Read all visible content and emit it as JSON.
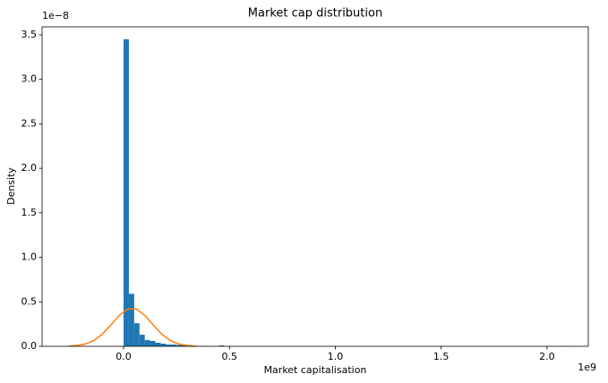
{
  "chart_data": {
    "type": "histogram",
    "title": "Market cap distribution",
    "x_label": "Market capitalisation",
    "y_label": "Density",
    "x_offset_label": "1e9",
    "y_offset_label": "1e−8",
    "bins": [
      0,
      25000000.0,
      50000000.0,
      75000000.0,
      100000000.0,
      125000000.0,
      150000000.0,
      175000000.0,
      200000000.0,
      225000000.0,
      250000000.0,
      275000000.0,
      300000000.0,
      325000000.0,
      350000000.0,
      375000000.0,
      400000000.0,
      425000000.0,
      450000000.0,
      475000000.0,
      500000000.0,
      525000000.0,
      550000000.0,
      575000000.0,
      600000000.0,
      625000000.0,
      650000000.0,
      675000000.0,
      700000000.0,
      725000000.0,
      750000000.0,
      775000000.0,
      800000000.0,
      825000000.0,
      850000000.0,
      875000000.0,
      900000000.0,
      925000000.0,
      950000000.0,
      975000000.0,
      1000000000.0,
      1025000000.0,
      1050000000.0,
      1075000000.0,
      1100000000.0,
      1125000000.0,
      1150000000.0,
      1175000000.0,
      1200000000.0,
      1225000000.0,
      1250000000.0,
      1275000000.0,
      1300000000.0,
      1325000000.0,
      1350000000.0,
      1375000000.0,
      1400000000.0,
      1425000000.0,
      1450000000.0,
      1475000000.0,
      1500000000.0,
      1525000000.0,
      1550000000.0,
      1575000000.0,
      1600000000.0,
      1625000000.0,
      1650000000.0,
      1675000000.0,
      1700000000.0,
      1725000000.0,
      1750000000.0,
      1775000000.0,
      1800000000.0,
      1825000000.0,
      1850000000.0,
      1875000000.0,
      1900000000.0,
      1925000000.0,
      1950000000.0,
      1975000000.0,
      2000000000.0,
      2025000000.0,
      2050000000.0,
      2075000000.0,
      2100000000.0
    ],
    "values": [
      3.45e-08,
      5.9e-09,
      2.6e-09,
      1.3e-09,
      7e-10,
      6e-10,
      4e-10,
      3e-10,
      2e-10,
      2e-10,
      1.5e-10,
      1e-10,
      1e-10,
      5e-11,
      5e-11,
      3e-11,
      0,
      0,
      1e-10,
      0,
      0,
      0,
      0,
      0,
      0,
      0,
      0,
      0,
      0,
      0,
      0,
      0,
      0,
      0,
      0,
      0,
      0,
      0,
      0,
      0,
      0,
      0,
      0,
      0,
      0,
      0,
      0,
      0,
      0,
      0,
      0,
      0,
      0,
      0,
      0,
      0,
      0,
      0,
      0,
      0,
      0,
      0,
      0,
      0,
      0,
      0,
      0,
      0,
      0,
      0,
      0,
      0,
      0,
      0,
      0,
      0,
      0,
      0,
      0,
      0,
      0,
      0,
      0,
      2e-11
    ],
    "color": "#1f77b4",
    "curve": {
      "color": "#ff7f0e",
      "x": [
        -260000000.0,
        -220000000.0,
        -180000000.0,
        -140000000.0,
        -100000000.0,
        -60000000.0,
        -20000000.0,
        20000000.0,
        60000000.0,
        100000000.0,
        140000000.0,
        180000000.0,
        220000000.0,
        260000000.0,
        300000000.0,
        340000000.0
      ],
      "values": [
        2.3e-11,
        8.5e-11,
        2.59e-10,
        6.55e-10,
        1.378e-09,
        2.405e-09,
        3.489e-09,
        4.201e-09,
        4.201e-09,
        3.489e-09,
        2.405e-09,
        1.378e-09,
        6.55e-10,
        2.59e-10,
        8.5e-11,
        2.3e-11
      ]
    },
    "xlim": [
      -385000000.0,
      2195000000.0
    ],
    "xticks": [
      {
        "value": 0,
        "label": "0.0"
      },
      {
        "value": 500000000.0,
        "label": "0.5"
      },
      {
        "value": 1000000000.0,
        "label": "1.0"
      },
      {
        "value": 1500000000.0,
        "label": "1.5"
      },
      {
        "value": 2000000000.0,
        "label": "2.0"
      }
    ],
    "ylim": [
      0,
      3.59e-08
    ],
    "yticks": [
      {
        "value": 0,
        "label": "0.0"
      },
      {
        "value": 5e-09,
        "label": "0.5"
      },
      {
        "value": 1e-08,
        "label": "1.0"
      },
      {
        "value": 1.5e-08,
        "label": "1.5"
      },
      {
        "value": 2e-08,
        "label": "2.0"
      },
      {
        "value": 2.5e-08,
        "label": "2.5"
      },
      {
        "value": 3e-08,
        "label": "3.0"
      },
      {
        "value": 3.5e-08,
        "label": "3.5"
      }
    ]
  }
}
